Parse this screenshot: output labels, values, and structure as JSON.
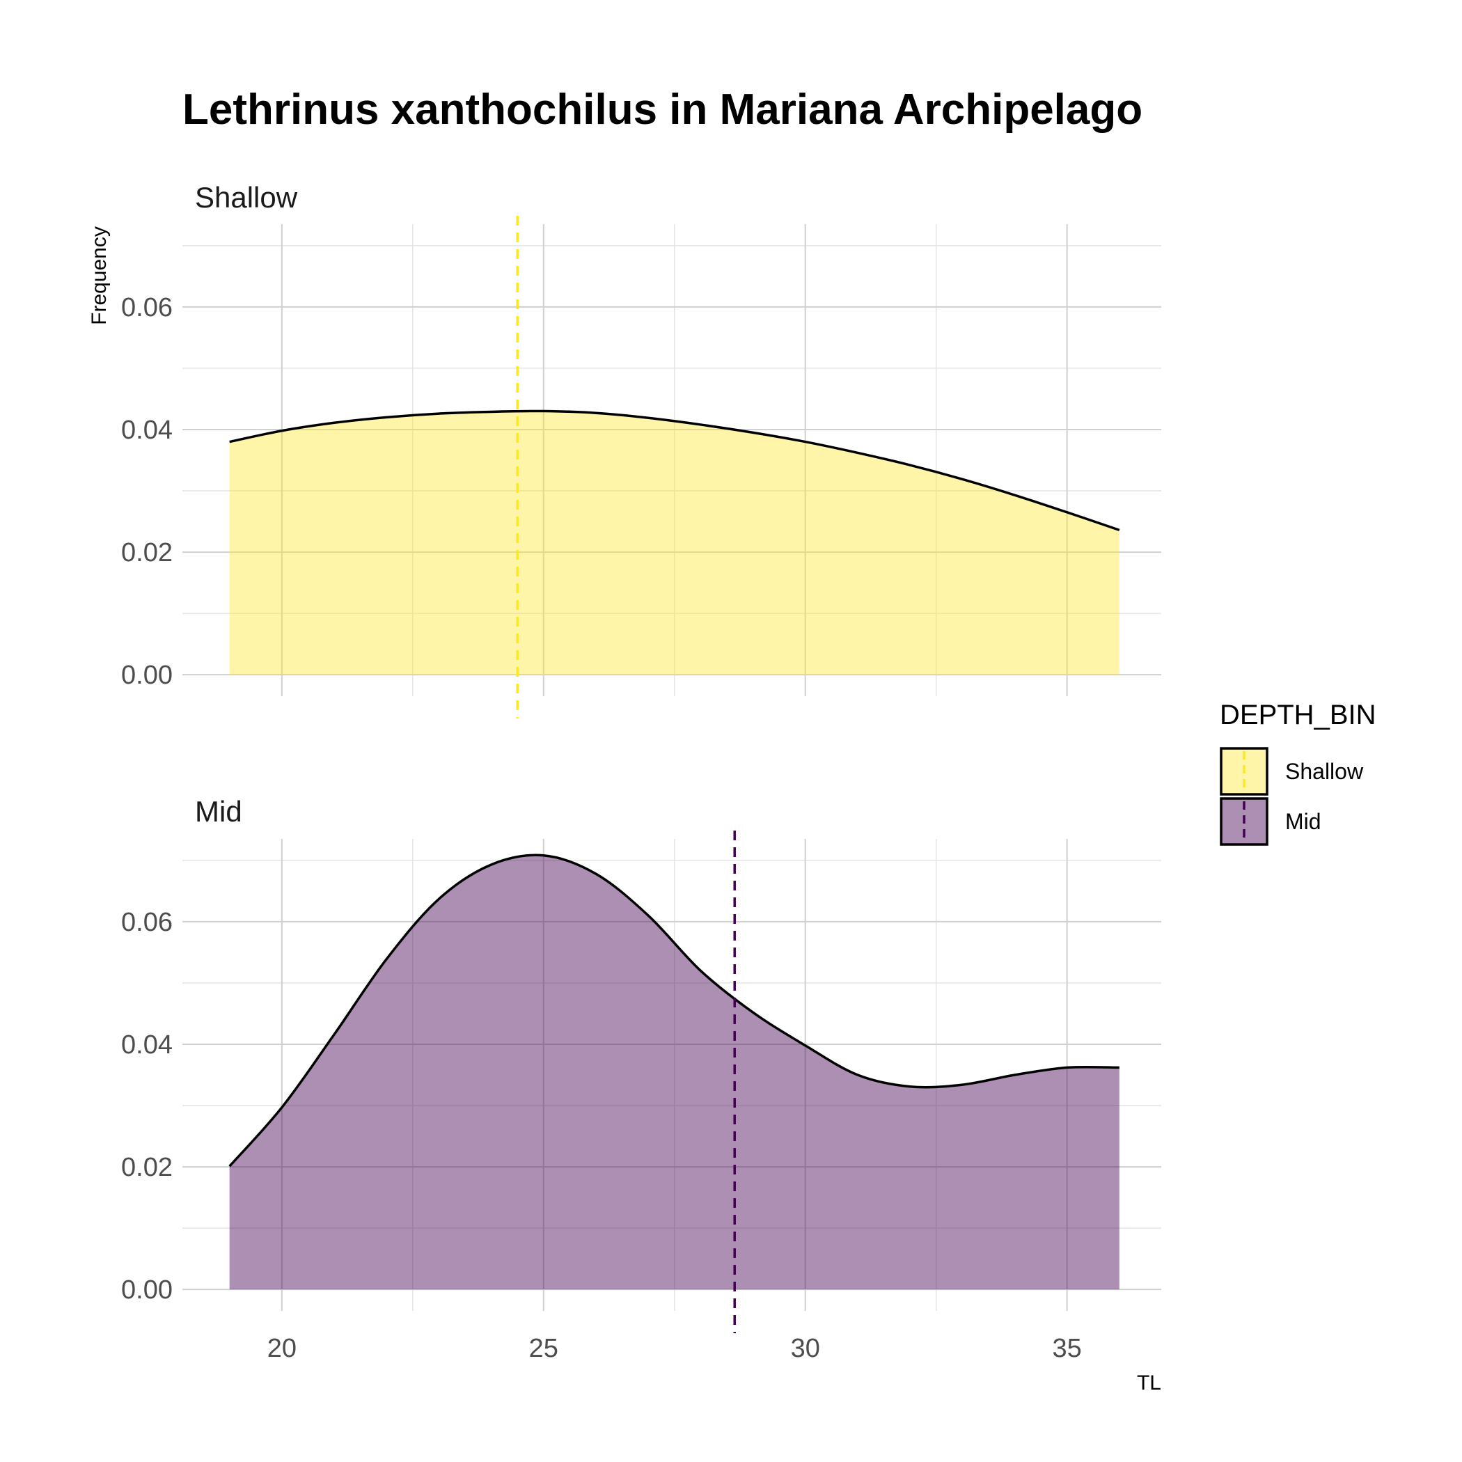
{
  "chart_data": {
    "type": "area",
    "title": "Lethrinus xanthochilus in Mariana Archipelago",
    "xlabel": "TL",
    "ylabel": "Frequency",
    "xlim": [
      18.1,
      36.8
    ],
    "ylim": [
      -0.0035,
      0.0735
    ],
    "x_ticks": [
      20,
      25,
      30,
      35
    ],
    "y_ticks": [
      0.0,
      0.02,
      0.04,
      0.06
    ],
    "x_tick_labels": [
      "20",
      "25",
      "30",
      "35"
    ],
    "y_tick_labels": [
      "0.00",
      "0.02",
      "0.04",
      "0.06"
    ],
    "grid": true,
    "legend": {
      "title": "DEPTH_BIN",
      "position": "right",
      "entries": [
        {
          "label": "Shallow",
          "fill": "#FDE725",
          "line": "#FDE725"
        },
        {
          "label": "Mid",
          "fill": "#440154",
          "line": "#440154"
        }
      ]
    },
    "panels": [
      {
        "strip": "Shallow",
        "fill": "#FDE725",
        "fill_opacity": 0.4,
        "mean_line_color": "#FDE725",
        "mean_TL": 24.5,
        "x": [
          19,
          20,
          21,
          22,
          23,
          24,
          25,
          26,
          27,
          28,
          29,
          30,
          31,
          32,
          33,
          34,
          35,
          36
        ],
        "y": [
          0.038,
          0.0398,
          0.0411,
          0.042,
          0.0426,
          0.0429,
          0.043,
          0.0427,
          0.0419,
          0.0408,
          0.0395,
          0.038,
          0.0362,
          0.0342,
          0.0319,
          0.0293,
          0.0265,
          0.0236
        ]
      },
      {
        "strip": "Mid",
        "fill": "#440154",
        "fill_opacity": 0.44,
        "mean_line_color": "#440154",
        "mean_TL": 28.65,
        "x": [
          19,
          20,
          21,
          22,
          23,
          24,
          25,
          26,
          27,
          28,
          29,
          30,
          31,
          32,
          33,
          34,
          35,
          36
        ],
        "y": [
          0.0201,
          0.0297,
          0.0416,
          0.0539,
          0.0637,
          0.0693,
          0.0708,
          0.0678,
          0.061,
          0.052,
          0.0452,
          0.0398,
          0.035,
          0.0331,
          0.0334,
          0.035,
          0.0362,
          0.0362
        ]
      }
    ]
  }
}
